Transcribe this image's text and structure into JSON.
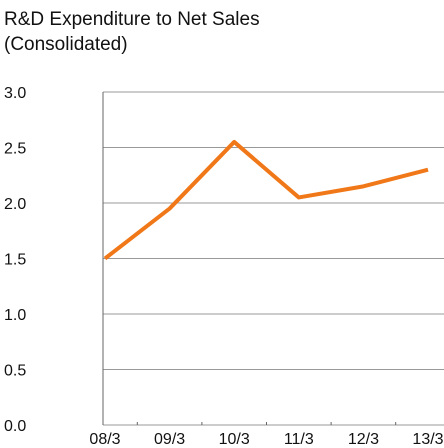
{
  "chart_data": {
    "type": "line",
    "title": "R&D Expenditure to Net Sales",
    "subtitle": "(Consolidated)",
    "categories": [
      "08/3",
      "09/3",
      "10/3",
      "11/3",
      "12/3",
      "13/3"
    ],
    "series": [
      {
        "name": "R&D Expenditure to Net Sales",
        "color": "#f07818",
        "values": [
          1.5,
          1.95,
          2.55,
          2.05,
          2.15,
          2.3
        ]
      }
    ],
    "ylim": [
      0,
      3
    ],
    "yticks": [
      {
        "value": 0,
        "label": "0.0"
      },
      0.5,
      {
        "value": 1,
        "label": "1.0"
      },
      1.5,
      {
        "value": 2,
        "label": "2.0"
      },
      2.5,
      {
        "value": 3,
        "label": "3.0"
      }
    ],
    "grid": true
  }
}
